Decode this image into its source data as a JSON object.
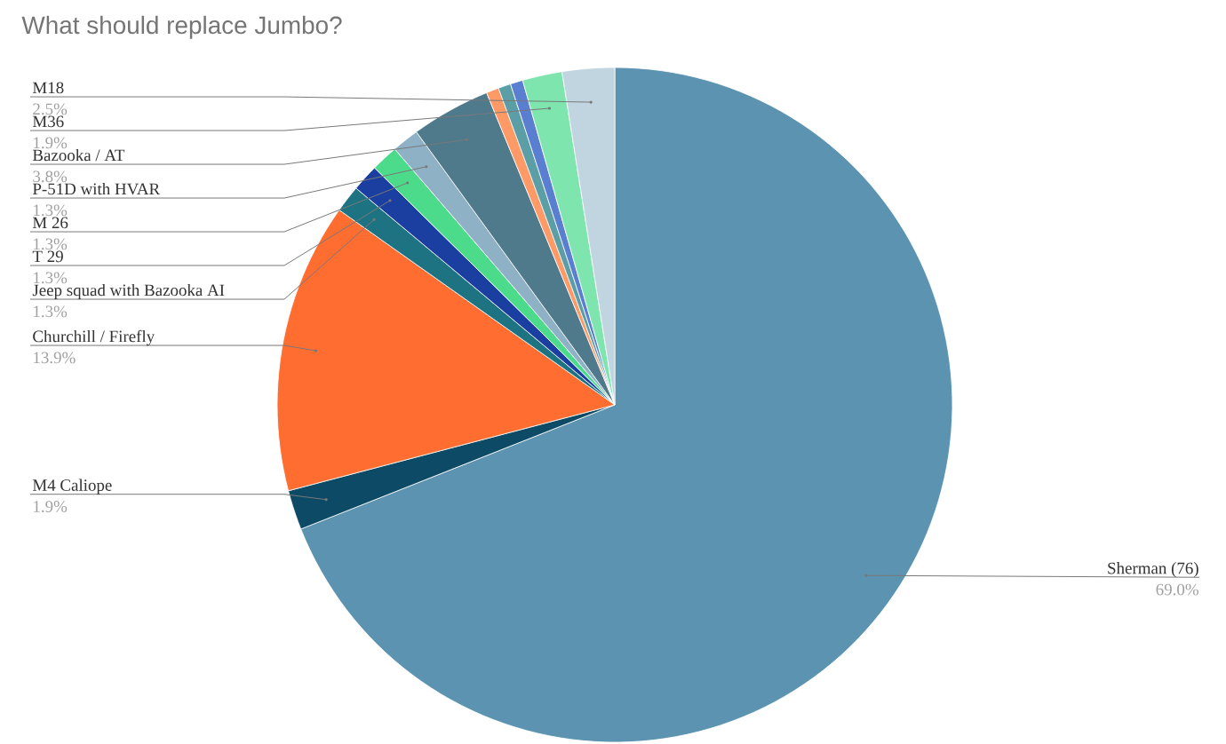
{
  "chart_data": {
    "type": "pie",
    "title": "What should replace Jumbo?",
    "categories": [
      "Sherman (76)",
      "M4 Caliope",
      "Churchill / Firefly",
      "Jeep squad with Bazooka AI",
      "T 29",
      "M 26",
      "P-51D with HVAR",
      "Bazooka / AT",
      null,
      null,
      null,
      "M36",
      "M18"
    ],
    "values": [
      69.0,
      1.9,
      13.9,
      1.3,
      1.3,
      1.3,
      1.3,
      3.8,
      0.6,
      0.6,
      0.6,
      1.9,
      2.5
    ],
    "value_labels": [
      "69.0%",
      "1.9%",
      "13.9%",
      "1.3%",
      "1.3%",
      "1.3%",
      "1.3%",
      "3.8%",
      null,
      null,
      null,
      "1.9%",
      "2.5%"
    ],
    "colors": [
      "#5b93b0",
      "#0d4a66",
      "#ff6d31",
      "#1e7382",
      "#1a3fa0",
      "#4cdb8a",
      "#8fb1c6",
      "#4e7a8c",
      "#ff9966",
      "#5b9ea6",
      "#5b7fd0",
      "#7fe5ae",
      "#c0d5e0"
    ]
  }
}
